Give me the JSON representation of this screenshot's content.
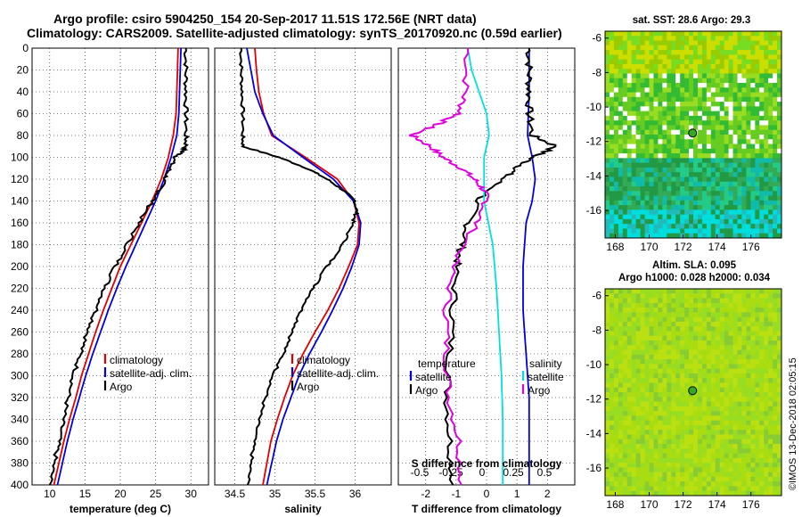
{
  "header": {
    "title_line1": "Argo profile: csiro 5904250_154 20-Sep-2017 11.51S 172.56E (NRT data)",
    "title_line2": "Climatology: CARS2009. Satellite-adjusted climatology: synTS_20170920.nc (0.59d earlier)"
  },
  "map_top": {
    "title": "sat. SST: 28.6 Argo: 29.3",
    "xticks": [
      "168",
      "170",
      "172",
      "174",
      "176"
    ],
    "yticks": [
      "-6",
      "-8",
      "-10",
      "-12",
      "-14",
      "-16"
    ],
    "xlim": [
      167.4,
      177.8
    ],
    "ylim": [
      -17.6,
      -5.6
    ],
    "argo_lon": 172.56,
    "argo_lat": -11.51
  },
  "map_bottom": {
    "title_line1": "Altim. SLA: 0.095",
    "title_line2": "Argo h1000: 0.028 h2000: 0.034",
    "xticks": [
      "168",
      "170",
      "172",
      "174",
      "176"
    ],
    "yticks": [
      "-6",
      "-8",
      "-10",
      "-12",
      "-14",
      "-16"
    ],
    "xlim": [
      167.4,
      177.8
    ],
    "ylim": [
      -17.6,
      -5.6
    ],
    "argo_lon": 172.56,
    "argo_lat": -11.51
  },
  "timestamp": "©IMOS 13-Dec-2018 02:05:15",
  "colors": {
    "climatology": "#e00000",
    "satellite": "#0000e0",
    "argo": "#000000",
    "cyan": "#00e0e0",
    "magenta": "#e000e0",
    "argo_marker": "#33aa22"
  },
  "chart_data": [
    {
      "type": "line",
      "xlabel": "temperature (deg C)",
      "ylabel": "",
      "xlim": [
        7.5,
        32.5
      ],
      "ylim": [
        400,
        0
      ],
      "xticks": [
        "10",
        "15",
        "20",
        "25",
        "30"
      ],
      "yticks": [
        "0",
        "20",
        "40",
        "60",
        "80",
        "100",
        "120",
        "140",
        "160",
        "180",
        "200",
        "220",
        "240",
        "260",
        "280",
        "300",
        "320",
        "340",
        "360",
        "380",
        "400"
      ],
      "legend": [
        "climatology",
        "satellite-adj. clim.",
        "Argo"
      ],
      "series": [
        {
          "name": "climatology",
          "depth": [
            0,
            20,
            40,
            60,
            80,
            100,
            120,
            140,
            160,
            180,
            200,
            220,
            240,
            260,
            280,
            300,
            320,
            340,
            360,
            380,
            400
          ],
          "values": [
            28.2,
            28.1,
            28.0,
            27.9,
            27.5,
            26.8,
            25.8,
            24.5,
            23.0,
            21.5,
            20.0,
            18.8,
            17.6,
            16.5,
            15.5,
            14.5,
            13.7,
            12.8,
            12.0,
            11.3,
            10.6
          ]
        },
        {
          "name": "satellite-adj. clim.",
          "depth": [
            0,
            20,
            40,
            60,
            80,
            100,
            120,
            140,
            160,
            180,
            200,
            220,
            240,
            260,
            280,
            300,
            320,
            340,
            360,
            380,
            400
          ],
          "values": [
            28.6,
            28.5,
            28.4,
            28.3,
            28.0,
            27.2,
            26.2,
            25.0,
            23.6,
            22.2,
            20.8,
            19.5,
            18.3,
            17.2,
            16.1,
            15.1,
            14.2,
            13.3,
            12.5,
            11.8,
            11.1
          ]
        },
        {
          "name": "Argo",
          "depth": [
            0,
            20,
            40,
            60,
            80,
            90,
            95,
            100,
            110,
            120,
            130,
            140,
            160,
            180,
            200,
            220,
            240,
            260,
            280,
            300,
            320,
            340,
            360,
            380,
            400
          ],
          "values": [
            29.3,
            29.3,
            29.3,
            29.3,
            29.3,
            29.3,
            28.8,
            27.8,
            27.0,
            26.3,
            25.6,
            24.6,
            22.6,
            21.0,
            19.3,
            17.8,
            16.6,
            15.4,
            14.3,
            13.4,
            12.6,
            11.9,
            11.3,
            10.6,
            10.0
          ]
        }
      ]
    },
    {
      "type": "line",
      "xlabel": "salinity",
      "ylabel": "",
      "xlim": [
        34.25,
        36.45
      ],
      "ylim": [
        400,
        0
      ],
      "xticks": [
        "34.5",
        "35",
        "35.5",
        "36"
      ],
      "legend": [
        "climatology",
        "satellite-adj. clim.",
        "Argo"
      ],
      "series": [
        {
          "name": "climatology",
          "depth": [
            0,
            20,
            40,
            60,
            80,
            100,
            120,
            140,
            160,
            180,
            200,
            220,
            240,
            260,
            280,
            300,
            320,
            340,
            360,
            380,
            400
          ],
          "values": [
            34.75,
            34.77,
            34.8,
            34.86,
            34.96,
            35.38,
            35.78,
            35.98,
            36.05,
            36.03,
            35.92,
            35.8,
            35.66,
            35.5,
            35.35,
            35.22,
            35.12,
            35.03,
            34.95,
            34.9,
            34.85
          ]
        },
        {
          "name": "satellite-adj. clim.",
          "depth": [
            0,
            20,
            40,
            60,
            80,
            100,
            120,
            140,
            160,
            180,
            200,
            220,
            240,
            260,
            280,
            300,
            320,
            340,
            360,
            380,
            400
          ],
          "values": [
            34.65,
            34.7,
            34.75,
            34.85,
            34.98,
            35.35,
            35.73,
            35.98,
            36.07,
            36.05,
            35.96,
            35.85,
            35.72,
            35.58,
            35.43,
            35.3,
            35.2,
            35.1,
            35.02,
            34.96,
            34.9
          ]
        },
        {
          "name": "Argo",
          "depth": [
            0,
            20,
            40,
            60,
            80,
            90,
            100,
            110,
            120,
            130,
            140,
            150,
            160,
            180,
            200,
            220,
            240,
            260,
            280,
            300,
            320,
            340,
            360,
            380,
            400
          ],
          "values": [
            34.58,
            34.58,
            34.59,
            34.6,
            34.6,
            34.6,
            35.05,
            35.4,
            35.65,
            35.85,
            36.0,
            36.02,
            35.97,
            35.85,
            35.65,
            35.48,
            35.33,
            35.22,
            35.1,
            34.98,
            34.88,
            34.8,
            34.74,
            34.7,
            34.66
          ]
        }
      ]
    },
    {
      "type": "line",
      "xlabel": "T difference from climatology",
      "ylabel": "",
      "xlim": [
        -2.9,
        2.9
      ],
      "ylim": [
        400,
        0
      ],
      "xticks": [
        "-2",
        "-1",
        "0",
        "1",
        "2"
      ],
      "top_axis_label": "S difference from climatology",
      "top_xticks": [
        "-0.5",
        "-0.25",
        "0",
        "0.25",
        "0.5"
      ],
      "legend": [
        "temperature",
        "satellite",
        "Argo",
        "salinity",
        "satellite",
        "Argo"
      ],
      "series": [
        {
          "name": "temperature satellite",
          "depth": [
            0,
            40,
            80,
            100,
            120,
            140,
            160,
            200,
            240,
            280,
            320,
            360,
            400
          ],
          "values": [
            1.4,
            1.4,
            1.35,
            1.5,
            1.6,
            1.5,
            1.3,
            1.2,
            1.2,
            1.3,
            1.4,
            1.4,
            1.4
          ]
        },
        {
          "name": "temperature Argo",
          "depth": [
            0,
            20,
            40,
            60,
            80,
            90,
            100,
            110,
            120,
            140,
            160,
            180,
            200,
            240,
            280,
            320,
            360,
            400
          ],
          "values": [
            1.4,
            1.4,
            1.4,
            1.4,
            1.5,
            2.3,
            1.5,
            1.0,
            0.5,
            -0.3,
            -0.6,
            -0.8,
            -1.0,
            -1.1,
            -1.2,
            -1.3,
            -1.2,
            -1.1
          ]
        },
        {
          "name": "salinity satellite",
          "depth": [
            0,
            20,
            40,
            60,
            80,
            100,
            140,
            180,
            220,
            260,
            300,
            340,
            380,
            400
          ],
          "values": [
            -0.15,
            -0.12,
            -0.06,
            0,
            0.02,
            -0.02,
            -0.02,
            0.05,
            0.08,
            0.1,
            0.12,
            0.13,
            0.13,
            0.13
          ]
        },
        {
          "name": "salinity Argo",
          "depth": [
            0,
            40,
            60,
            70,
            80,
            90,
            100,
            110,
            120,
            130,
            140,
            160,
            200,
            240,
            280,
            320,
            360,
            400
          ],
          "values": [
            -0.15,
            -0.17,
            -0.22,
            -0.4,
            -0.6,
            -0.45,
            -0.35,
            -0.2,
            -0.1,
            -0.02,
            0,
            -0.08,
            -0.27,
            -0.32,
            -0.32,
            -0.3,
            -0.22,
            -0.2
          ]
        }
      ]
    }
  ]
}
